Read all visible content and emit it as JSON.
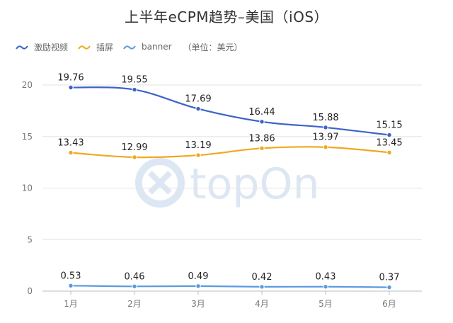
{
  "chart_data": {
    "type": "line",
    "title": "上半年eCPM趋势–美国（iOS）",
    "unit_note": "（单位：美元）",
    "categories": [
      "1月",
      "2月",
      "3月",
      "4月",
      "5月",
      "6月"
    ],
    "ylim": [
      0,
      20
    ],
    "yticks": [
      0,
      5,
      10,
      15,
      20
    ],
    "grid": true,
    "legend_position": "top-left",
    "series": [
      {
        "name": "激励视频",
        "color": "#3b63c8",
        "values": [
          19.76,
          19.55,
          17.69,
          16.44,
          15.88,
          15.15
        ]
      },
      {
        "name": "插屏",
        "color": "#f0a81e",
        "values": [
          13.43,
          12.99,
          13.19,
          13.86,
          13.97,
          13.45
        ]
      },
      {
        "name": "banner",
        "color": "#5b9ae0",
        "values": [
          0.53,
          0.46,
          0.49,
          0.42,
          0.43,
          0.37
        ]
      }
    ],
    "watermark": "topOn"
  }
}
